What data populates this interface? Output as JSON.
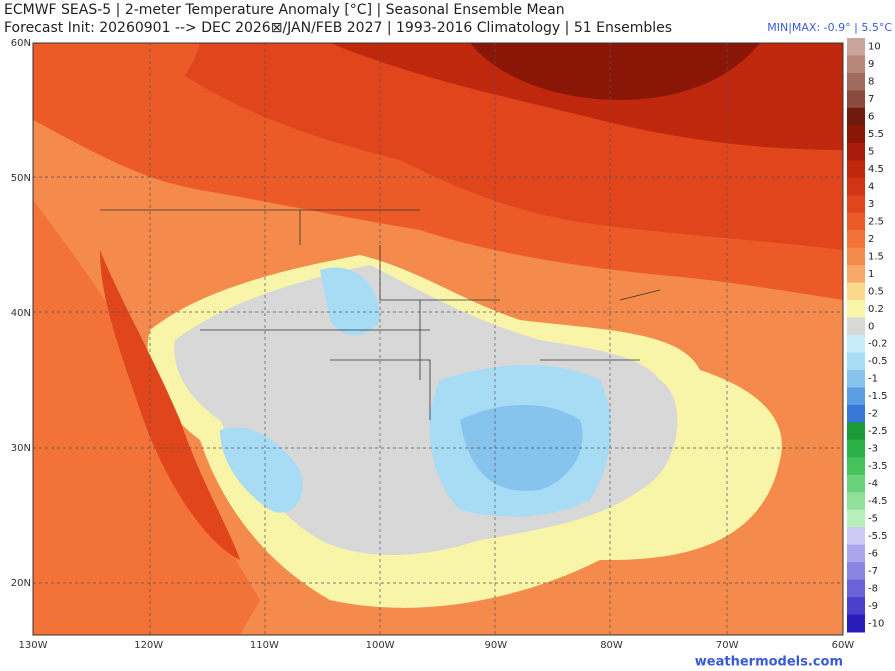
{
  "header": {
    "title": "ECMWF SEAS-5 | 2-meter Temperature Anomaly [°C] | Seasonal Ensemble Mean",
    "subtitle": "Forecast Init: 20260901 --> DEC 2026⊠/JAN/FEB 2027  | 1993-2016 Climatology | 51 Ensembles",
    "minmax": "MIN|MAX: -0.9° | 5.5°C"
  },
  "latitudes": [
    "60N",
    "50N",
    "40N",
    "30N",
    "20N"
  ],
  "longitudes": [
    "130W",
    "120W",
    "110W",
    "100W",
    "90W",
    "80W",
    "70W",
    "60W"
  ],
  "legend": {
    "items": [
      {
        "value": 10,
        "color": "#c9a59c"
      },
      {
        "value": 9,
        "color": "#b8877c"
      },
      {
        "value": 8,
        "color": "#a06a5e"
      },
      {
        "value": 7,
        "color": "#8a4a3e"
      },
      {
        "value": 6,
        "color": "#6e1a0c"
      },
      {
        "value": 5.5,
        "color": "#8a1608"
      },
      {
        "value": 5,
        "color": "#a81c0a"
      },
      {
        "value": 4.5,
        "color": "#c0280e"
      },
      {
        "value": 4,
        "color": "#d23414"
      },
      {
        "value": 3,
        "color": "#e0451c"
      },
      {
        "value": 2.5,
        "color": "#ec5a28"
      },
      {
        "value": 2,
        "color": "#f27238"
      },
      {
        "value": 1.5,
        "color": "#f48a4c"
      },
      {
        "value": 1,
        "color": "#f8a86a"
      },
      {
        "value": 0.5,
        "color": "#fbd88e"
      },
      {
        "value": 0.2,
        "color": "#f8f4a8"
      },
      {
        "value": 0,
        "color": "#d8d8d8"
      },
      {
        "value": -0.2,
        "color": "#c8ecfa"
      },
      {
        "value": -0.5,
        "color": "#a8dcf4"
      },
      {
        "value": -1,
        "color": "#86c4ee"
      },
      {
        "value": -1.5,
        "color": "#5c9ee4"
      },
      {
        "value": -2,
        "color": "#3a78d8"
      },
      {
        "value": -2.5,
        "color": "#1c9a3a"
      },
      {
        "value": -3,
        "color": "#2cb048"
      },
      {
        "value": -3.5,
        "color": "#48c25c"
      },
      {
        "value": -4,
        "color": "#6ad27a"
      },
      {
        "value": -4.5,
        "color": "#90e09a"
      },
      {
        "value": -5,
        "color": "#b8eebc"
      },
      {
        "value": -5.5,
        "color": "#cccaf4"
      },
      {
        "value": -6,
        "color": "#aaa6ec"
      },
      {
        "value": -7,
        "color": "#8a84e2"
      },
      {
        "value": -8,
        "color": "#6a62d8"
      },
      {
        "value": -9,
        "color": "#4a40cc"
      },
      {
        "value": -10,
        "color": "#2a1cbc"
      }
    ]
  },
  "credit": "weathermodels.com"
}
